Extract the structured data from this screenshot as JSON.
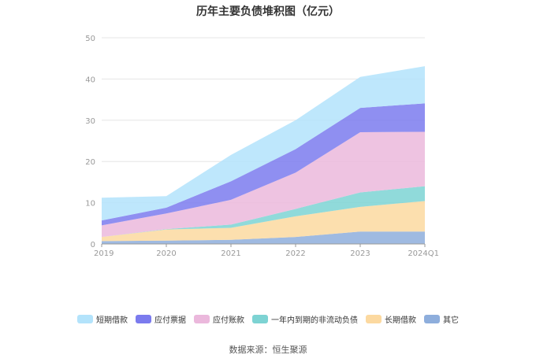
{
  "chart_data": {
    "type": "area",
    "stacked": true,
    "title": "历年主要负债堆积图（亿元）",
    "xlabel": "",
    "ylabel": "",
    "categories": [
      "2019",
      "2020",
      "2021",
      "2022",
      "2023",
      "2024Q1"
    ],
    "ylim": [
      0,
      50
    ],
    "yticks": [
      0,
      10,
      20,
      30,
      40,
      50
    ],
    "grid": true,
    "legend_position": "bottom",
    "series": [
      {
        "name": "其它",
        "color": "#8EAEDC",
        "values": [
          0.7,
          0.8,
          1.0,
          1.7,
          3.0,
          3.0
        ]
      },
      {
        "name": "长期借款",
        "color": "#FCD9A0",
        "values": [
          1.0,
          2.7,
          2.9,
          5.0,
          6.0,
          7.4
        ]
      },
      {
        "name": "一年内到期的非流动负债",
        "color": "#7DD3D3",
        "values": [
          0.0,
          0.1,
          0.8,
          1.8,
          3.5,
          3.6
        ]
      },
      {
        "name": "应付账款",
        "color": "#EBB8DC",
        "values": [
          2.8,
          3.8,
          6.0,
          8.8,
          14.6,
          13.2
        ]
      },
      {
        "name": "应付票据",
        "color": "#7B7BEE",
        "values": [
          1.2,
          1.4,
          4.5,
          5.7,
          5.9,
          6.9
        ]
      },
      {
        "name": "短期借款",
        "color": "#B3E3FB",
        "values": [
          5.5,
          2.8,
          6.4,
          7.0,
          7.5,
          9.0
        ]
      }
    ],
    "legend_order": [
      "短期借款",
      "应付票据",
      "应付账款",
      "一年内到期的非流动负债",
      "长期借款",
      "其它"
    ]
  },
  "source_text": "数据来源：恒生聚源"
}
